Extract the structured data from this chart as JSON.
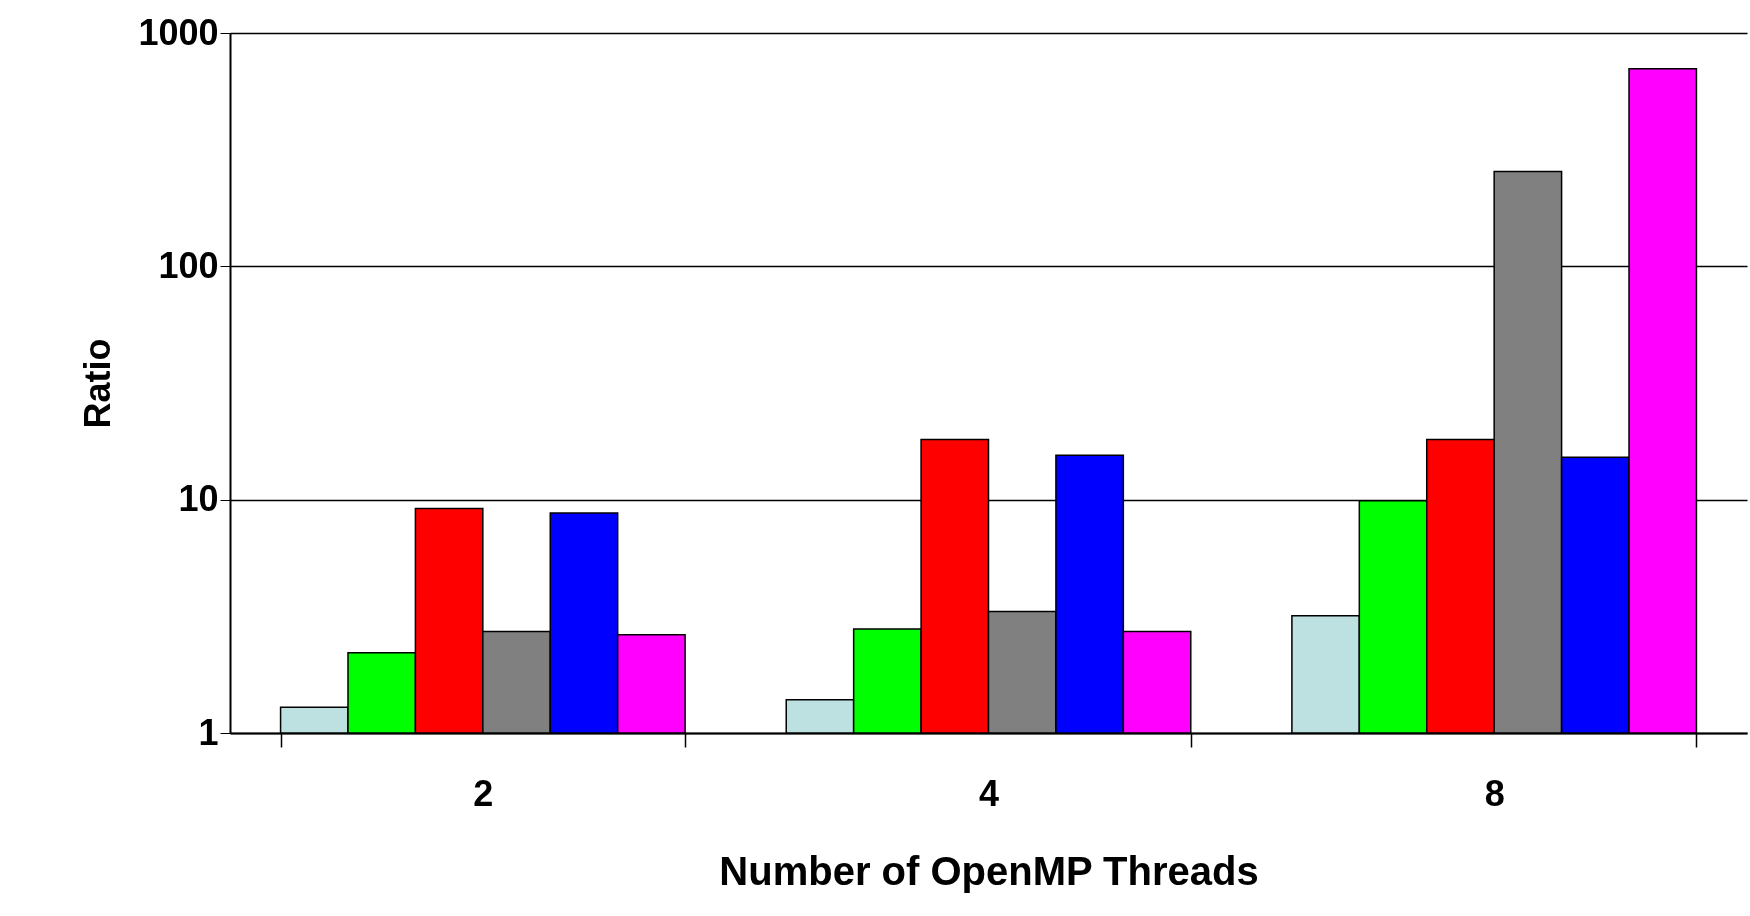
{
  "chart_data": {
    "type": "bar",
    "xlabel": "Number of OpenMP Threads",
    "ylabel": "Ratio",
    "categories": [
      "2",
      "4",
      "8"
    ],
    "series": [
      {
        "color": "#bde0e0",
        "values": [
          1.29,
          1.39,
          3.18
        ]
      },
      {
        "color": "#00ff00",
        "values": [
          2.21,
          2.79,
          9.9
        ]
      },
      {
        "color": "#ff0000",
        "values": [
          9.16,
          18.1,
          18.1
        ]
      },
      {
        "color": "#808080",
        "values": [
          2.72,
          3.32,
          255
        ]
      },
      {
        "color": "#0000ff",
        "values": [
          8.76,
          15.5,
          15.2
        ]
      },
      {
        "color": "#ff00ff",
        "values": [
          2.64,
          2.72,
          703
        ]
      }
    ],
    "log": true,
    "ylim": [
      1,
      1000
    ],
    "yticks": [
      1,
      10,
      100,
      1000
    ],
    "grid": "y",
    "legend": false
  }
}
